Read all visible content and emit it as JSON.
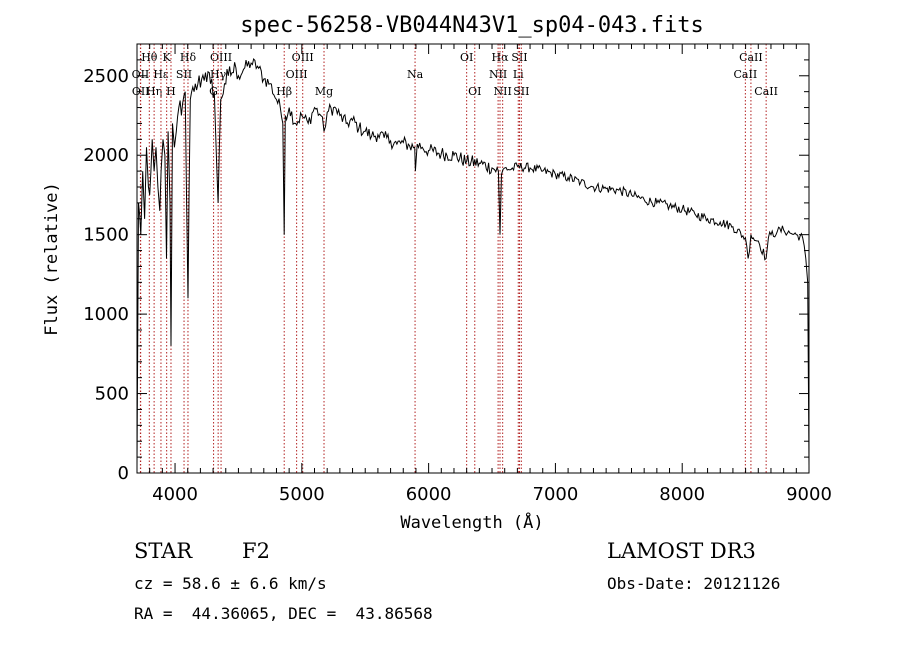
{
  "chart_data": {
    "type": "line",
    "title": "spec-56258-VB044N43V1_sp04-043.fits",
    "xlabel": "Wavelength (Å)",
    "ylabel": "Flux (relative)",
    "xlim": [
      3700,
      9000
    ],
    "ylim": [
      0,
      2700
    ],
    "x_ticks": [
      4000,
      5000,
      6000,
      7000,
      8000,
      9000
    ],
    "y_ticks": [
      0,
      500,
      1000,
      1500,
      2000,
      2500
    ],
    "series": [
      {
        "name": "spectrum",
        "x": [
          3700,
          3712,
          3730,
          3745,
          3760,
          3775,
          3790,
          3800,
          3820,
          3835,
          3850,
          3865,
          3880,
          3890,
          3905,
          3920,
          3933,
          3945,
          3960,
          3968,
          3980,
          3995,
          4010,
          4030,
          4050,
          4080,
          4102,
          4120,
          4150,
          4180,
          4210,
          4240,
          4280,
          4310,
          4330,
          4340,
          4360,
          4390,
          4420,
          4450,
          4480,
          4500,
          4550,
          4600,
          4650,
          4700,
          4750,
          4800,
          4830,
          4850,
          4861,
          4870,
          4900,
          4950,
          5000,
          5050,
          5100,
          5150,
          5175,
          5200,
          5250,
          5300,
          5350,
          5400,
          5450,
          5500,
          5550,
          5600,
          5650,
          5700,
          5750,
          5800,
          5850,
          5890,
          5896,
          5910,
          5950,
          6000,
          6100,
          6200,
          6300,
          6400,
          6500,
          6550,
          6563,
          6575,
          6600,
          6650,
          6700,
          6800,
          6900,
          7000,
          7100,
          7200,
          7300,
          7400,
          7500,
          7600,
          7700,
          7800,
          7900,
          8000,
          8100,
          8200,
          8300,
          8400,
          8498,
          8520,
          8542,
          8560,
          8600,
          8662,
          8680,
          8700,
          8750,
          8800,
          8850,
          8900,
          8950,
          8975,
          8990,
          9000
        ],
        "values": [
          50,
          1700,
          1500,
          1900,
          1600,
          2050,
          1800,
          1750,
          2100,
          1900,
          2050,
          1800,
          1650,
          1900,
          2100,
          2000,
          1350,
          2150,
          1700,
          800,
          2200,
          2050,
          2150,
          2300,
          2250,
          2400,
          1100,
          2350,
          2400,
          2450,
          2480,
          2520,
          2450,
          2400,
          1900,
          1700,
          2350,
          2450,
          2500,
          2520,
          2550,
          2500,
          2550,
          2580,
          2560,
          2480,
          2450,
          2350,
          2300,
          2200,
          1500,
          2250,
          2300,
          2200,
          2250,
          2200,
          2300,
          2250,
          2150,
          2270,
          2300,
          2250,
          2200,
          2220,
          2170,
          2150,
          2120,
          2130,
          2110,
          2090,
          2070,
          2080,
          2060,
          2050,
          1900,
          2070,
          2050,
          2030,
          2010,
          2000,
          1960,
          1950,
          1920,
          1900,
          1500,
          1880,
          1920,
          1910,
          1930,
          1920,
          1900,
          1880,
          1860,
          1830,
          1800,
          1790,
          1780,
          1750,
          1720,
          1700,
          1680,
          1660,
          1630,
          1600,
          1580,
          1550,
          1480,
          1350,
          1500,
          1480,
          1460,
          1350,
          1480,
          1500,
          1520,
          1530,
          1510,
          1500,
          1480,
          1350,
          1200,
          50
        ]
      }
    ],
    "spectral_lines": [
      {
        "label": "Hθ",
        "wavelength": 3797,
        "row": 1
      },
      {
        "label": "OII",
        "wavelength": 3727,
        "row": 2
      },
      {
        "label": "OII",
        "wavelength": 3729,
        "row": 3
      },
      {
        "label": "Hη",
        "wavelength": 3835,
        "row": 3
      },
      {
        "label": "Hε",
        "wavelength": 3889,
        "row": 2
      },
      {
        "label": "K",
        "wavelength": 3934,
        "row": 1
      },
      {
        "label": "H",
        "wavelength": 3968,
        "row": 3
      },
      {
        "label": "Hδ",
        "wavelength": 4102,
        "row": 1
      },
      {
        "label": "SII",
        "wavelength": 4071,
        "row": 2
      },
      {
        "label": "OIII",
        "wavelength": 4363,
        "row": 1
      },
      {
        "label": "Hγ",
        "wavelength": 4340,
        "row": 2
      },
      {
        "label": "G",
        "wavelength": 4304,
        "row": 3
      },
      {
        "label": "Hβ",
        "wavelength": 4861,
        "row": 3
      },
      {
        "label": "OIII",
        "wavelength": 5007,
        "row": 1
      },
      {
        "label": "OIII",
        "wavelength": 4959,
        "row": 2
      },
      {
        "label": "Mg",
        "wavelength": 5175,
        "row": 3
      },
      {
        "label": "Na",
        "wavelength": 5893,
        "row": 2
      },
      {
        "label": "OI",
        "wavelength": 6300,
        "row": 1
      },
      {
        "label": "OI",
        "wavelength": 6364,
        "row": 3
      },
      {
        "label": "Hα",
        "wavelength": 6563,
        "row": 1
      },
      {
        "label": "NII",
        "wavelength": 6548,
        "row": 2
      },
      {
        "label": "NII",
        "wavelength": 6584,
        "row": 3
      },
      {
        "label": "SII",
        "wavelength": 6717,
        "row": 1
      },
      {
        "label": "Li",
        "wavelength": 6707,
        "row": 2
      },
      {
        "label": "SII",
        "wavelength": 6731,
        "row": 3
      },
      {
        "label": "CaII",
        "wavelength": 8542,
        "row": 1
      },
      {
        "label": "CaII",
        "wavelength": 8498,
        "row": 2
      },
      {
        "label": "CaII",
        "wavelength": 8662,
        "row": 3
      }
    ]
  },
  "footer": {
    "class_label": "STAR",
    "subclass": "F2",
    "redshift": "cz = 58.6 ± 6.6 km/s",
    "coords": "RA =  44.36065, DEC =  43.86568",
    "survey": "LAMOST DR3",
    "obs_date": "Obs-Date: 20121126"
  },
  "colors": {
    "spectrum": "#000000",
    "line_markers": "#b22222",
    "axes": "#000000"
  }
}
